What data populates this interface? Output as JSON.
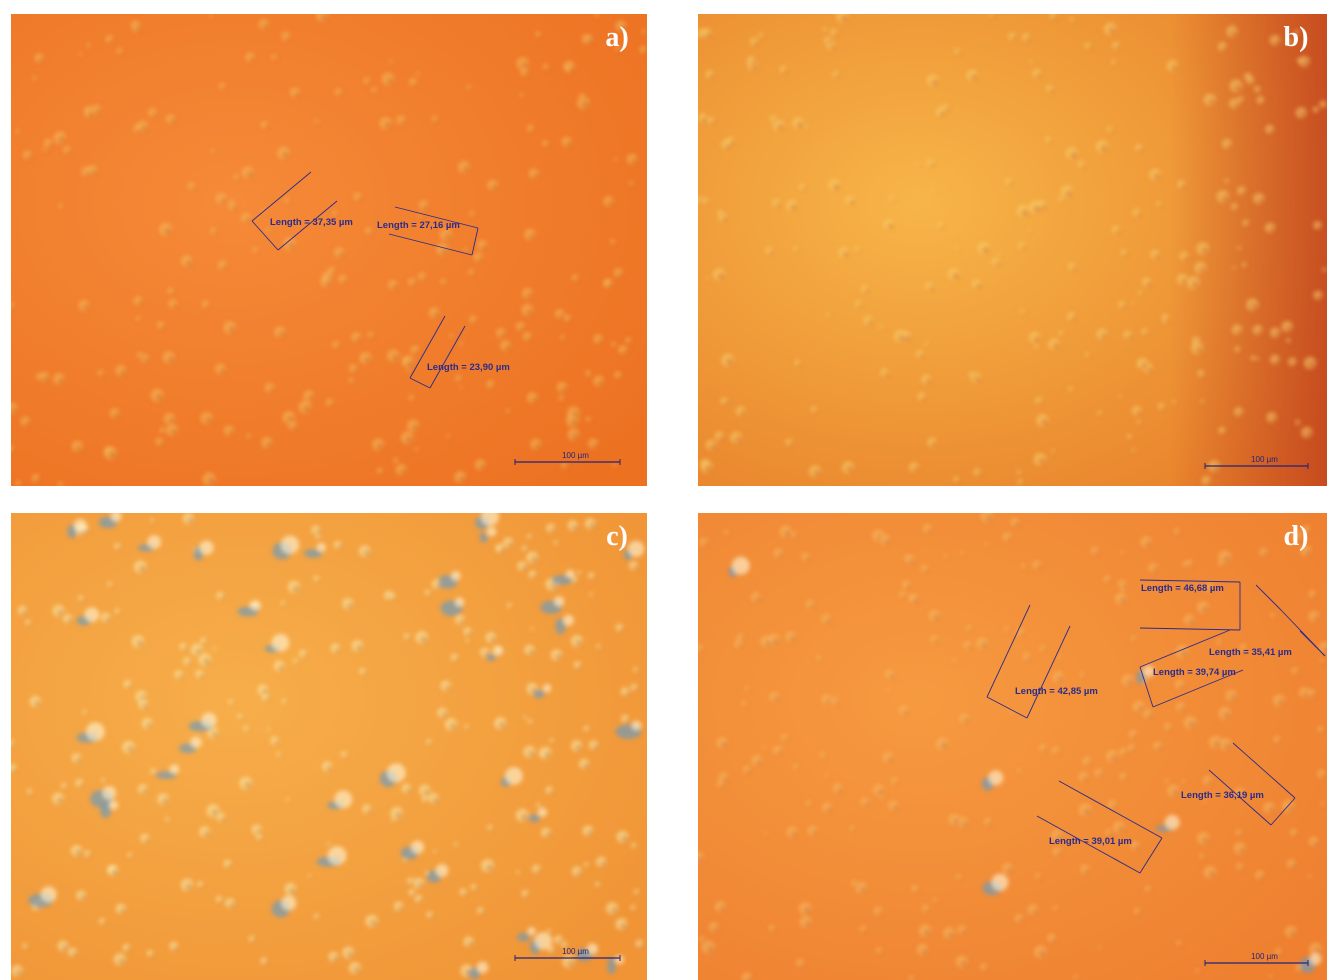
{
  "panels": [
    {
      "label": "a)",
      "measurements": [
        "Length = 37,35 µm",
        "Length = 27,16 µm",
        "Length = 23,90 µm"
      ],
      "scale_bar": "100 µm"
    },
    {
      "label": "b)",
      "measurements": [],
      "scale_bar": "100 µm"
    },
    {
      "label": "c)",
      "measurements": [],
      "scale_bar": "100 µm"
    },
    {
      "label": "d)",
      "measurements": [
        "Length = 46,68 µm",
        "Length = 35,41 µm",
        "Length = 39,74 µm",
        "Length = 42,85 µm",
        "Length = 36,19 µm",
        "Length = 39,01 µm"
      ],
      "scale_bar": "100 µm"
    }
  ]
}
